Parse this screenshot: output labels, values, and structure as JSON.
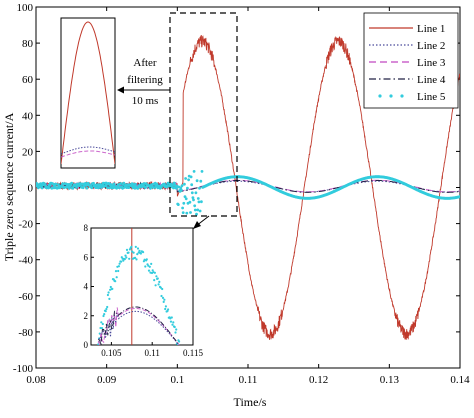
{
  "chart_data": {
    "type": "line",
    "xlabel": "Time/s",
    "ylabel": "Triple zero sequence current/A",
    "xlim": [
      0.08,
      0.14
    ],
    "ylim": [
      -100,
      100
    ],
    "xticks": [
      "0.08",
      "0.09",
      "0.1",
      "0.11",
      "0.12",
      "0.13",
      "0.14"
    ],
    "yticks": [
      "100",
      "80",
      "60",
      "40",
      "20",
      "0",
      "-20",
      "-40",
      "-60",
      "-80",
      "-100"
    ],
    "legend_position": "top-right",
    "series": [
      {
        "name": "Line 1",
        "style": "solid",
        "color": "#c0392b",
        "description_points": {
          "pre_fault_level": 1,
          "fault_time": 0.1,
          "peaks": [
            [
              0.1035,
              80
            ],
            [
              0.1225,
              80
            ]
          ],
          "troughs": [
            [
              0.1132,
              -82
            ],
            [
              0.1325,
              -82
            ]
          ],
          "end": [
            0.14,
            30
          ]
        }
      },
      {
        "name": "Line 2",
        "style": "dotted",
        "color": "#4a4a9a"
      },
      {
        "name": "Line 3",
        "style": "dashed",
        "color": "#cc66cc"
      },
      {
        "name": "Line 4",
        "style": "dashdot",
        "color": "#222244"
      },
      {
        "name": "Line 5",
        "style": "markers",
        "color": "#33ccdd"
      }
    ],
    "annotations": {
      "filter_text_1": "After",
      "filter_text_2": "filtering",
      "filter_text_3": "10 ms"
    },
    "inset_right": {
      "xlim": [
        0.1025,
        0.115
      ],
      "ylim": [
        0,
        8
      ],
      "xticks": [
        "0.105",
        "0.11",
        "0.115"
      ],
      "yticks": [
        "8",
        "6",
        "4",
        "2",
        "0"
      ],
      "vline_x": 0.1075
    }
  },
  "colors": {
    "line1": "#c0392b",
    "line2": "#4a4a9a",
    "line3": "#cc66cc",
    "line4": "#222244",
    "line5": "#33ccdd"
  }
}
